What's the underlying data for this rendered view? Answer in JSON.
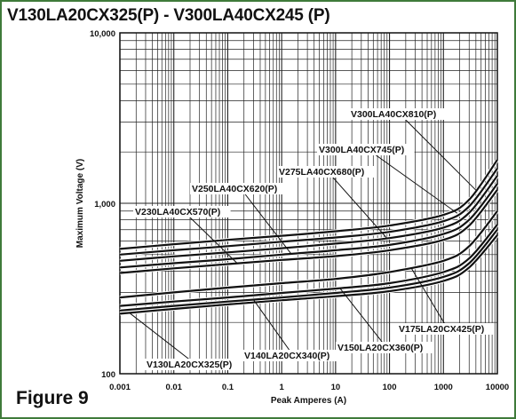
{
  "title": "V130LA20CX325(P) - V300LA40CX245 (P)",
  "figure_label": "Figure 9",
  "colors": {
    "frame": "#3f7a3a",
    "curve": "#111111",
    "grid": "#222222",
    "label_bg": "#ffffff"
  },
  "chart_data": {
    "type": "line",
    "title": "V130LA20CX325(P) - V300LA40CX245 (P)",
    "xlabel": "Peak Amperes (A)",
    "ylabel": "Maximum Voltage (V)",
    "xscale": "log",
    "yscale": "log",
    "xlim": [
      0.001,
      10000
    ],
    "ylim": [
      100,
      10000
    ],
    "grid": true,
    "x_ticks": [
      {
        "value": 0.001,
        "label": "0.001"
      },
      {
        "value": 0.01,
        "label": "0.01"
      },
      {
        "value": 0.1,
        "label": "0.1"
      },
      {
        "value": 1,
        "label": "1"
      },
      {
        "value": 10,
        "label": "10"
      },
      {
        "value": 100,
        "label": "100"
      },
      {
        "value": 1000,
        "label": "1000"
      },
      {
        "value": 10000,
        "label": "10000"
      }
    ],
    "y_ticks": [
      {
        "value": 100,
        "label": "100"
      },
      {
        "value": 1000,
        "label": "1,000"
      },
      {
        "value": 10000,
        "label": "10,000"
      }
    ],
    "x": [
      0.001,
      0.01,
      0.1,
      1,
      10,
      100,
      1000,
      3000,
      10000
    ],
    "series": [
      {
        "name": "V130LA20CX325(P)",
        "values": [
          225,
          240,
          255,
          270,
          285,
          305,
          350,
          420,
          650
        ]
      },
      {
        "name": "V140LA20CX340(P)",
        "values": [
          235,
          250,
          265,
          280,
          298,
          320,
          370,
          445,
          700
        ]
      },
      {
        "name": "V150LA20CX360(P)",
        "values": [
          250,
          265,
          280,
          298,
          316,
          340,
          395,
          475,
          750
        ]
      },
      {
        "name": "V175LA20CX425(P)",
        "values": [
          280,
          300,
          320,
          340,
          360,
          395,
          460,
          560,
          900
        ]
      },
      {
        "name": "V230LA40CX570(P)",
        "values": [
          390,
          415,
          440,
          465,
          490,
          530,
          610,
          740,
          1200
        ]
      },
      {
        "name": "V250LA40CX620(P)",
        "values": [
          420,
          445,
          470,
          500,
          530,
          570,
          660,
          800,
          1300
        ]
      },
      {
        "name": "V275LA40CX680(P)",
        "values": [
          460,
          488,
          515,
          545,
          580,
          625,
          720,
          880,
          1450
        ]
      },
      {
        "name": "V300LA40CX745(P)",
        "values": [
          500,
          530,
          560,
          595,
          630,
          680,
          785,
          960,
          1600
        ]
      },
      {
        "name": "V300LA40CX810(P)",
        "values": [
          540,
          575,
          610,
          645,
          685,
          740,
          855,
          1050,
          1800
        ]
      }
    ],
    "annotations": [
      {
        "text": "V300LA40CX810(P)",
        "series": 8,
        "target_x": 4000
      },
      {
        "text": "V300LA40CX745(P)",
        "series": 7,
        "target_x": 1800
      },
      {
        "text": "V275LA40CX680(P)",
        "series": 6,
        "target_x": 90
      },
      {
        "text": "V250LA40CX620(P)",
        "series": 5,
        "target_x": 1.5
      },
      {
        "text": "V230LA40CX570(P)",
        "series": 4,
        "target_x": 0.15
      },
      {
        "text": "V175LA20CX425(P)",
        "series": 3,
        "target_x": 250
      },
      {
        "text": "V150LA20CX360(P)",
        "series": 2,
        "target_x": 12
      },
      {
        "text": "V140LA20CX340(P)",
        "series": 1,
        "target_x": 0.3
      },
      {
        "text": "V130LA20CX325(P)",
        "series": 0,
        "target_x": 0.0015
      }
    ]
  }
}
